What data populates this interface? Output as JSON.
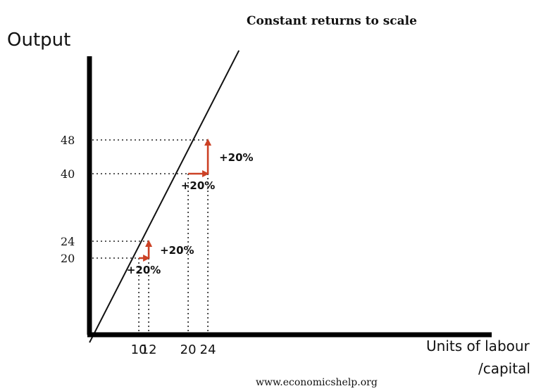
{
  "chart_data": {
    "type": "line",
    "title": "Constant returns to scale",
    "ylabel": "Output",
    "xlabel_line1": "Units of labour",
    "xlabel_line2": "/capital",
    "series": [
      {
        "x": [
          0,
          30.3
        ],
        "y": [
          0,
          69.2
        ]
      }
    ],
    "x_ticks": [
      10,
      12,
      20,
      24
    ],
    "y_ticks": [
      20,
      24,
      40,
      48
    ],
    "guide_points": [
      {
        "x": 10,
        "y": 20
      },
      {
        "x": 12,
        "y": 24
      },
      {
        "x": 20,
        "y": 40
      },
      {
        "x": 24,
        "y": 48
      }
    ],
    "steps": [
      {
        "from": {
          "x": 10,
          "y": 20
        },
        "to": {
          "x": 12,
          "y": 24
        },
        "h_label": "+20%",
        "v_label": "+20%"
      },
      {
        "from": {
          "x": 20,
          "y": 40
        },
        "to": {
          "x": 24,
          "y": 48
        },
        "h_label": "+20%",
        "v_label": "+20%"
      }
    ],
    "arrow_color": "#cc4125",
    "line_color": "#111111",
    "grid": false,
    "source": "www.economicshelp.org"
  }
}
